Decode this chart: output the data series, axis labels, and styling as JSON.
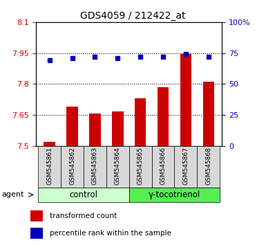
{
  "title": "GDS4059 / 212422_at",
  "categories": [
    "GSM545861",
    "GSM545862",
    "GSM545863",
    "GSM545864",
    "GSM545865",
    "GSM545866",
    "GSM545867",
    "GSM545868"
  ],
  "bar_values": [
    7.52,
    7.69,
    7.655,
    7.665,
    7.73,
    7.785,
    7.945,
    7.81
  ],
  "dot_values": [
    69,
    71,
    72,
    71,
    72,
    72,
    74,
    72
  ],
  "ylim_left": [
    7.5,
    8.1
  ],
  "ylim_right": [
    0,
    100
  ],
  "yticks_left": [
    7.5,
    7.65,
    7.8,
    7.95,
    8.1
  ],
  "yticks_right": [
    0,
    25,
    50,
    75,
    100
  ],
  "ytick_labels_left": [
    "7.5",
    "7.65",
    "7.8",
    "7.95",
    "8.1"
  ],
  "ytick_labels_right": [
    "0",
    "25",
    "50",
    "75",
    "100%"
  ],
  "bar_color": "#cc0000",
  "dot_color": "#0000bb",
  "bar_bottom": 7.5,
  "groups": [
    {
      "label": "control",
      "indices": [
        0,
        1,
        2,
        3
      ],
      "color": "#ccffcc"
    },
    {
      "label": "γ-tocotrienol",
      "indices": [
        4,
        5,
        6,
        7
      ],
      "color": "#55ee55"
    }
  ],
  "agent_label": "agent",
  "legend_bar_label": "transformed count",
  "legend_dot_label": "percentile rank within the sample",
  "plot_bg_color": "#ffffff",
  "left_tick_color": "#dd0000",
  "right_tick_color": "#0000bb",
  "grid_linestyle": "dotted",
  "bar_width": 0.5,
  "xlim": [
    -0.6,
    7.6
  ]
}
